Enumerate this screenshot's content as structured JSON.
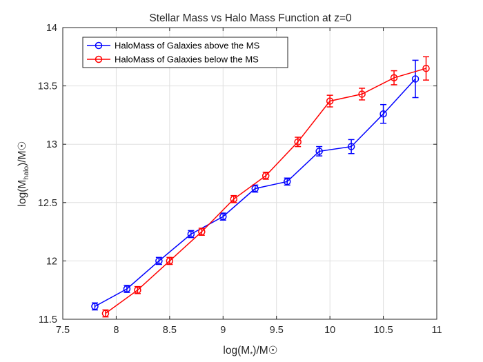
{
  "chart_data": {
    "type": "line",
    "title": "Stellar Mass vs Halo Mass Function at z=0",
    "xlabel": {
      "pre": "log(M",
      "sub": "*",
      "post": ")/M☉"
    },
    "ylabel": {
      "pre": "log(M",
      "sub": "halo",
      "post": ")/M☉"
    },
    "xlim": [
      7.5,
      11
    ],
    "ylim": [
      11.5,
      14
    ],
    "xticks": [
      7.5,
      8,
      8.5,
      9,
      9.5,
      10,
      10.5,
      11
    ],
    "yticks": [
      11.5,
      12,
      12.5,
      13,
      13.5,
      14
    ],
    "grid": true,
    "legend_position": "top-left",
    "marker": "open-circle",
    "series": [
      {
        "name": "HaloMass of Galaxies above the MS",
        "color": "#0000ff",
        "x": [
          7.8,
          8.1,
          8.4,
          8.7,
          9.0,
          9.3,
          9.6,
          9.9,
          10.2,
          10.5,
          10.8
        ],
        "y": [
          11.61,
          11.76,
          12.0,
          12.23,
          12.38,
          12.62,
          12.68,
          12.94,
          12.98,
          13.26,
          13.56
        ],
        "err": [
          0.03,
          0.03,
          0.03,
          0.03,
          0.03,
          0.03,
          0.03,
          0.04,
          0.06,
          0.08,
          0.16
        ]
      },
      {
        "name": "HaloMass of Galaxies below the MS",
        "color": "#ff0000",
        "x": [
          7.9,
          8.2,
          8.5,
          8.8,
          9.1,
          9.4,
          9.7,
          10.0,
          10.3,
          10.6,
          10.9
        ],
        "y": [
          11.55,
          11.75,
          12.0,
          12.25,
          12.53,
          12.73,
          13.02,
          13.37,
          13.43,
          13.57,
          13.65
        ],
        "err": [
          0.03,
          0.03,
          0.03,
          0.03,
          0.03,
          0.03,
          0.04,
          0.05,
          0.05,
          0.06,
          0.1
        ]
      }
    ]
  }
}
